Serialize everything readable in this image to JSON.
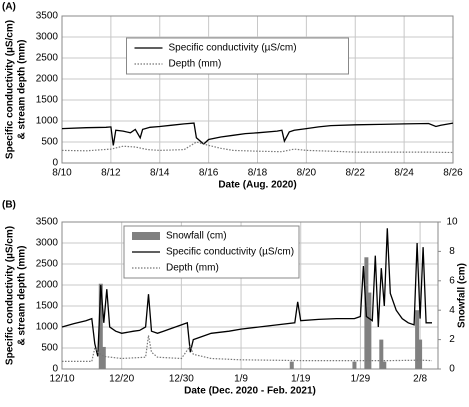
{
  "chart_data": [
    {
      "type": "line",
      "panel_label": "(A)",
      "xlabel": "Date (Aug. 2020)",
      "ylabel": [
        "Specific conductivity (µS/cm)",
        "& stream depth (mm)"
      ],
      "xlim": [
        10,
        26
      ],
      "xticks": [
        {
          "value": 10,
          "label": "8/10"
        },
        {
          "value": 12,
          "label": "8/12"
        },
        {
          "value": 14,
          "label": "8/14"
        },
        {
          "value": 16,
          "label": "8/16"
        },
        {
          "value": 18,
          "label": "8/18"
        },
        {
          "value": 20,
          "label": "8/20"
        },
        {
          "value": 22,
          "label": "8/22"
        },
        {
          "value": 24,
          "label": "8/24"
        },
        {
          "value": 26,
          "label": "8/26"
        }
      ],
      "ylim": [
        0,
        3500
      ],
      "yticks": [
        0,
        500,
        1000,
        1500,
        2000,
        2500,
        3000,
        3500
      ],
      "grid": true,
      "legend": "top-center",
      "series": [
        {
          "name": "Specific conductivity (µS/cm)",
          "color": "#000000",
          "style": "solid",
          "x": [
            10,
            11,
            11.8,
            12.0,
            12.1,
            12.2,
            12.5,
            12.8,
            13.0,
            13.2,
            13.3,
            13.6,
            14,
            14.5,
            15,
            15.4,
            15.5,
            15.8,
            16,
            16.5,
            17,
            17.5,
            18,
            18.8,
            19.0,
            19.1,
            19.3,
            19.5,
            20,
            20.5,
            21,
            22,
            23,
            24,
            25,
            25.3,
            25.5,
            26
          ],
          "values": [
            820,
            840,
            850,
            860,
            420,
            780,
            760,
            720,
            800,
            600,
            800,
            850,
            870,
            900,
            930,
            950,
            600,
            450,
            560,
            620,
            660,
            700,
            720,
            760,
            780,
            520,
            740,
            780,
            820,
            860,
            890,
            910,
            920,
            930,
            940,
            870,
            900,
            950
          ]
        },
        {
          "name": "Depth (mm)",
          "color": "#777777",
          "style": "dotted",
          "x": [
            10,
            11,
            12,
            12.5,
            13,
            13.5,
            14,
            15,
            15.5,
            16,
            16.5,
            17,
            18,
            19,
            19.5,
            20,
            21,
            22,
            23,
            24,
            25,
            26
          ],
          "values": [
            300,
            290,
            330,
            400,
            380,
            320,
            300,
            320,
            500,
            420,
            350,
            300,
            280,
            270,
            330,
            300,
            280,
            260,
            260,
            260,
            260,
            250
          ]
        }
      ]
    },
    {
      "type": "line",
      "panel_label": "(B)",
      "xlabel": "Date (Dec. 2020 - Feb. 2021)",
      "ylabel": [
        "Specific conductivity (µS/cm)",
        "& stream depth (mm)"
      ],
      "y2label": "Snowfall (cm)",
      "xlim": [
        10,
        73
      ],
      "xticks": [
        {
          "value": 10,
          "label": "12/10"
        },
        {
          "value": 20,
          "label": "12/20"
        },
        {
          "value": 30,
          "label": "12/30"
        },
        {
          "value": 40,
          "label": "1/9"
        },
        {
          "value": 50,
          "label": "1/19"
        },
        {
          "value": 60,
          "label": "1/29"
        },
        {
          "value": 70,
          "label": "2/8"
        }
      ],
      "ylim": [
        0,
        3500
      ],
      "yticks": [
        0,
        500,
        1000,
        1500,
        2000,
        2500,
        3000,
        3500
      ],
      "y2lim": [
        0,
        10
      ],
      "y2ticks": [
        0,
        2,
        4,
        6,
        8,
        10
      ],
      "grid": true,
      "legend": "top-left",
      "series": [
        {
          "name": "Snowfall (cm)",
          "color": "#808080",
          "type": "bar",
          "axis": "y2",
          "x": [
            16.5,
            17,
            48.5,
            59,
            61,
            61.5,
            63.5,
            64,
            69.5,
            70
          ],
          "values": [
            5.8,
            1.5,
            0.5,
            0.5,
            7.6,
            5.2,
            2.0,
            0.5,
            4,
            2
          ]
        },
        {
          "name": "Specific conductivity (µS/cm)",
          "color": "#000000",
          "style": "solid",
          "x": [
            10,
            12,
            14,
            15,
            15.5,
            16,
            16.5,
            17,
            17.5,
            18,
            19,
            20,
            22,
            23,
            24,
            24.5,
            25,
            26,
            27,
            28,
            29,
            30,
            31,
            31.5,
            32,
            33,
            35,
            38,
            40,
            43,
            46,
            49,
            49.5,
            50,
            53,
            56,
            59,
            60,
            60.5,
            61,
            62,
            62.5,
            63,
            63.5,
            64,
            64.5,
            65,
            66,
            67,
            68,
            69,
            69.5,
            70,
            70.5,
            71,
            72
          ],
          "values": [
            1000,
            1080,
            1150,
            1200,
            600,
            300,
            2000,
            1100,
            1900,
            1000,
            900,
            850,
            900,
            920,
            1000,
            1780,
            900,
            850,
            900,
            950,
            1000,
            1050,
            1100,
            400,
            700,
            750,
            850,
            900,
            950,
            1000,
            1050,
            1100,
            1600,
            1150,
            1180,
            1200,
            1200,
            1250,
            2450,
            1250,
            1150,
            2700,
            1000,
            2400,
            1500,
            3350,
            1800,
            1400,
            1200,
            1100,
            1050,
            3000,
            1200,
            2900,
            1100,
            1100
          ]
        },
        {
          "name": "Depth (mm)",
          "color": "#777777",
          "style": "dotted",
          "x": [
            10,
            15,
            15.5,
            16,
            17,
            20,
            24,
            24.5,
            25,
            26,
            30,
            31.5,
            32,
            35,
            40,
            50,
            60,
            65,
            70,
            72
          ],
          "values": [
            180,
            180,
            500,
            400,
            300,
            250,
            280,
            800,
            400,
            280,
            250,
            550,
            350,
            250,
            220,
            200,
            200,
            200,
            210,
            200
          ]
        }
      ]
    }
  ]
}
